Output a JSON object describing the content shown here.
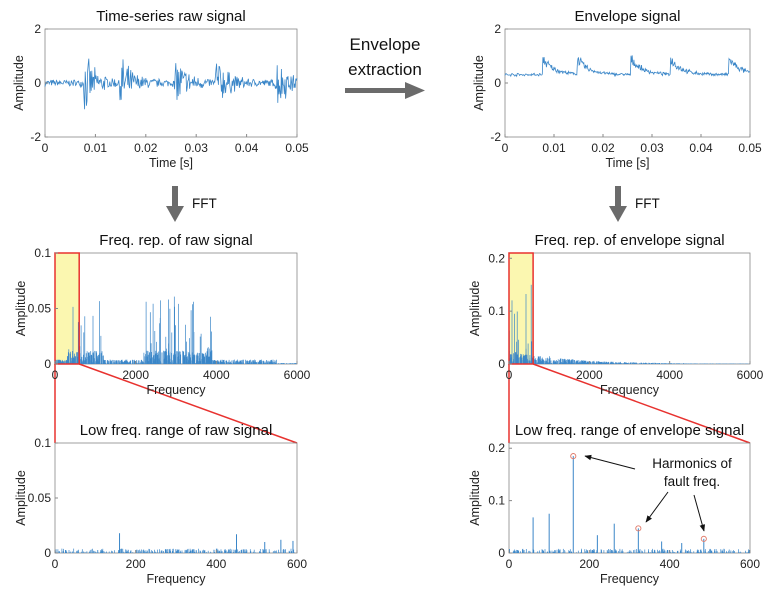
{
  "middle": {
    "line1": "Envelope",
    "line2": "extraction"
  },
  "fft_label_left": "FFT",
  "fft_label_right": "FFT",
  "annotation": {
    "line1": "Harmonics of",
    "line2": "fault freq."
  },
  "colors": {
    "signal": "#3a86c8",
    "highlight_fill": "#fbf7b0",
    "highlight_border": "#e8322f",
    "arrow": "#6b6b6b",
    "marker": "#e07a6a"
  },
  "chart_data": [
    {
      "id": "raw",
      "type": "line",
      "title": "Time-series raw signal",
      "xlabel": "Time [s]",
      "ylabel": "Amplitude",
      "xlim": [
        0,
        0.05
      ],
      "ylim": [
        -2,
        2
      ],
      "xticks": [
        "0",
        "0.01",
        "0.02",
        "0.03",
        "0.04",
        "0.05"
      ],
      "yticks": [
        "-2",
        "0",
        "2"
      ],
      "bursts_at": [
        0.008,
        0.015,
        0.026,
        0.034,
        0.046
      ]
    },
    {
      "id": "env",
      "type": "line",
      "title": "Envelope signal",
      "xlabel": "Time [s]",
      "ylabel": "Amplitude",
      "xlim": [
        0,
        0.05
      ],
      "ylim": [
        -2,
        2
      ],
      "xticks": [
        "0",
        "0.01",
        "0.02",
        "0.03",
        "0.04",
        "0.05"
      ],
      "yticks": [
        "-2",
        "0",
        "2"
      ],
      "bursts_at": [
        0.008,
        0.015,
        0.026,
        0.034,
        0.046
      ]
    },
    {
      "id": "rawfft",
      "type": "bar",
      "title": "Freq. rep. of raw signal",
      "xlabel": "Frequency",
      "ylabel": "Amplitude",
      "xlim": [
        0,
        6000
      ],
      "ylim": [
        0,
        0.1
      ],
      "xticks": [
        "0",
        "2000",
        "4000",
        "6000"
      ],
      "yticks": [
        "0",
        "0.05",
        "0.1"
      ],
      "highlight_range": [
        0,
        600
      ]
    },
    {
      "id": "envfft",
      "type": "bar",
      "title": "Freq. rep. of envelope signal",
      "xlabel": "Frequency",
      "ylabel": "Amplitude",
      "xlim": [
        0,
        6000
      ],
      "ylim": [
        0,
        0.21
      ],
      "xticks": [
        "0",
        "2000",
        "4000",
        "6000"
      ],
      "yticks": [
        "0",
        "0.1",
        "0.2"
      ],
      "highlight_range": [
        0,
        600
      ]
    },
    {
      "id": "rawlow",
      "type": "bar",
      "title": "Low freq. range of raw signal",
      "xlabel": "Frequency",
      "ylabel": "Amplitude",
      "xlim": [
        0,
        600
      ],
      "ylim": [
        0,
        0.1
      ],
      "xticks": [
        "0",
        "200",
        "400",
        "600"
      ],
      "yticks": [
        "0",
        "0.05",
        "0.1"
      ],
      "peaks": [
        [
          160,
          0.018
        ],
        [
          450,
          0.017
        ],
        [
          520,
          0.01
        ],
        [
          560,
          0.012
        ],
        [
          590,
          0.011
        ]
      ]
    },
    {
      "id": "envlow",
      "type": "bar",
      "title": "Low freq. range of envelope signal",
      "xlabel": "Frequency",
      "ylabel": "Amplitude",
      "xlim": [
        0,
        600
      ],
      "ylim": [
        0,
        0.21
      ],
      "xticks": [
        "0",
        "200",
        "400",
        "600"
      ],
      "yticks": [
        "0",
        "0.1",
        "0.2"
      ],
      "peaks": [
        [
          60,
          0.068
        ],
        [
          100,
          0.075
        ],
        [
          160,
          0.185
        ],
        [
          220,
          0.034
        ],
        [
          262,
          0.056
        ],
        [
          322,
          0.047
        ],
        [
          380,
          0.022
        ],
        [
          430,
          0.019
        ],
        [
          485,
          0.027
        ]
      ],
      "harmonics": [
        [
          160,
          0.185
        ],
        [
          322,
          0.047
        ],
        [
          485,
          0.027
        ]
      ]
    }
  ]
}
